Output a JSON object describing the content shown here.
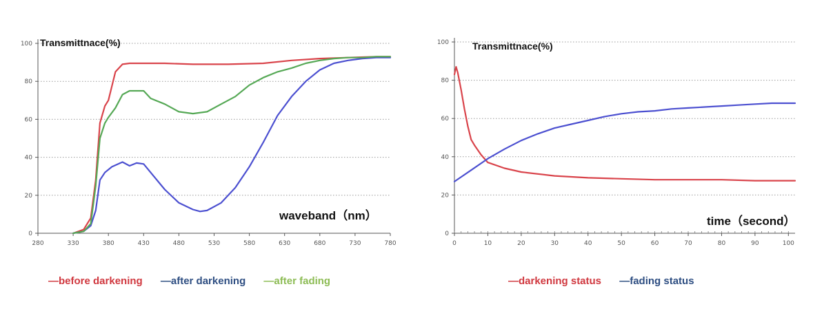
{
  "chart_data": [
    {
      "type": "line",
      "title": "",
      "ylabel": "Transmittnace(%)",
      "xlabel": "waveband（nm）",
      "xlim": [
        280,
        780
      ],
      "ylim": [
        0,
        100
      ],
      "xticks": [
        "280",
        "330",
        "380",
        "430",
        "480",
        "530",
        "580",
        "630",
        "680",
        "730",
        "780"
      ],
      "yticks": [
        "0",
        "20",
        "40",
        "60",
        "80",
        "100"
      ],
      "grid": true,
      "series": [
        {
          "name": "before darkening",
          "color": "#d9434a",
          "x": [
            330,
            345,
            355,
            362,
            368,
            375,
            380,
            390,
            400,
            410,
            420,
            440,
            460,
            500,
            550,
            600,
            640,
            680,
            720,
            760,
            780
          ],
          "y": [
            0,
            2,
            8,
            28,
            58,
            67,
            70,
            85,
            89,
            89.5,
            89.5,
            89.5,
            89.5,
            89,
            89,
            89.5,
            91,
            92,
            92.5,
            93,
            93
          ]
        },
        {
          "name": "after darkening",
          "color": "#4b4fd0",
          "x": [
            330,
            345,
            355,
            362,
            368,
            375,
            385,
            400,
            410,
            420,
            430,
            440,
            460,
            480,
            500,
            510,
            520,
            540,
            560,
            580,
            600,
            620,
            640,
            660,
            680,
            700,
            720,
            740,
            760,
            780
          ],
          "y": [
            0,
            1,
            4,
            12,
            28,
            32,
            35,
            37.5,
            35.5,
            37,
            36.5,
            32,
            23,
            16,
            12.5,
            11.5,
            12,
            16,
            24,
            35,
            48,
            62,
            72,
            80,
            86,
            89.5,
            91,
            92,
            92.5,
            92.5
          ]
        },
        {
          "name": "after fading",
          "color": "#55a855",
          "x": [
            330,
            345,
            355,
            362,
            368,
            375,
            380,
            390,
            400,
            410,
            420,
            430,
            440,
            460,
            480,
            500,
            520,
            540,
            560,
            580,
            600,
            620,
            640,
            660,
            680,
            700,
            720,
            740,
            760,
            780
          ],
          "y": [
            0,
            1,
            5,
            25,
            50,
            58,
            61,
            66,
            73,
            75,
            75,
            75,
            71,
            68,
            64,
            63,
            64,
            68,
            72,
            78,
            82,
            85,
            87,
            89.5,
            91,
            92,
            92.5,
            92.5,
            93,
            93
          ]
        }
      ]
    },
    {
      "type": "line",
      "title": "",
      "ylabel": "Transmittnace(%)",
      "xlabel": "time（second）",
      "xlim": [
        0,
        102
      ],
      "ylim": [
        0,
        100
      ],
      "xticks": [
        "0",
        "10",
        "20",
        "30",
        "40",
        "50",
        "60",
        "70",
        "80",
        "90",
        "100"
      ],
      "yticks": [
        "0",
        "20",
        "40",
        "60",
        "80",
        "100"
      ],
      "grid": true,
      "series": [
        {
          "name": "darkening status",
          "color": "#d9434a",
          "x": [
            0,
            0.5,
            1,
            2,
            3,
            4,
            5,
            6,
            8,
            10,
            15,
            20,
            30,
            40,
            50,
            60,
            70,
            80,
            90,
            102
          ],
          "y": [
            83,
            87,
            84,
            75,
            65,
            56,
            49,
            46,
            41,
            37,
            34,
            32,
            30,
            29,
            28.5,
            28,
            28,
            28,
            27.5,
            27.5
          ]
        },
        {
          "name": "fading status",
          "color": "#4b4fd0",
          "x": [
            0,
            5,
            10,
            15,
            20,
            25,
            30,
            35,
            40,
            45,
            50,
            55,
            60,
            65,
            70,
            75,
            80,
            85,
            90,
            95,
            102
          ],
          "y": [
            27,
            33,
            39,
            44,
            48.5,
            52,
            55,
            57,
            59,
            61,
            62.5,
            63.5,
            64,
            65,
            65.5,
            66,
            66.5,
            67,
            67.5,
            68,
            68
          ]
        }
      ]
    }
  ],
  "legends": [
    [
      {
        "label": "—before darkening",
        "color": "#d0383f"
      },
      {
        "label": "—after darkening",
        "color": "#2e4e82"
      },
      {
        "label": "—after fading",
        "color": "#8dbc55"
      }
    ],
    [
      {
        "label": "—darkening status",
        "color": "#d0383f"
      },
      {
        "label": "—fading status",
        "color": "#2e4e82"
      }
    ]
  ]
}
